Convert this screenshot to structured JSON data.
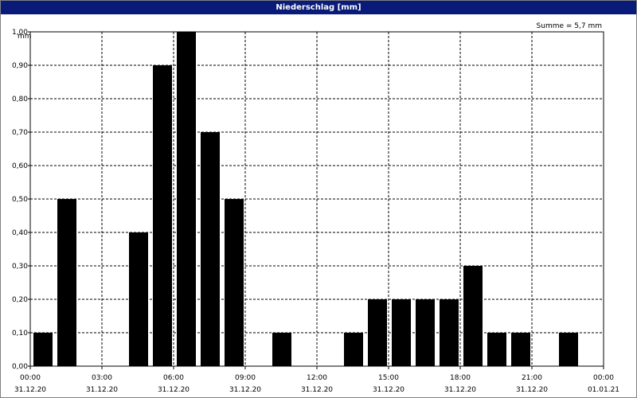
{
  "window_title": "Niederschlag [mm]",
  "summary": "Summe = 5,7 mm",
  "chart_data": {
    "type": "bar",
    "title": "Niederschlag [mm]",
    "ylabel": "mm",
    "ylim": [
      0,
      1.0
    ],
    "xlim": [
      "31.12.20 00:00",
      "01.01.21 00:00"
    ],
    "grid": true,
    "yticks": [
      "0,00",
      "0,10",
      "0,20",
      "0,30",
      "0,40",
      "0,50",
      "0,60",
      "0,70",
      "0,80",
      "0,90",
      "1,00"
    ],
    "xticks": [
      {
        "time": "00:00",
        "date": "31.12.20"
      },
      {
        "time": "03:00",
        "date": "31.12.20"
      },
      {
        "time": "06:00",
        "date": "31.12.20"
      },
      {
        "time": "09:00",
        "date": "31.12.20"
      },
      {
        "time": "12:00",
        "date": "31.12.20"
      },
      {
        "time": "15:00",
        "date": "31.12.20"
      },
      {
        "time": "18:00",
        "date": "31.12.20"
      },
      {
        "time": "21:00",
        "date": "31.12.20"
      },
      {
        "time": "00:00",
        "date": "01.01.21"
      }
    ],
    "categories": [
      "00:00",
      "01:00",
      "02:00",
      "03:00",
      "04:00",
      "05:00",
      "06:00",
      "07:00",
      "08:00",
      "09:00",
      "10:00",
      "11:00",
      "12:00",
      "13:00",
      "14:00",
      "15:00",
      "16:00",
      "17:00",
      "18:00",
      "19:00",
      "20:00",
      "21:00",
      "22:00",
      "23:00"
    ],
    "values": [
      0.1,
      0.5,
      0,
      0,
      0.4,
      0.9,
      1.0,
      0.7,
      0.5,
      0,
      0.1,
      0,
      0,
      0.1,
      0.2,
      0.2,
      0.2,
      0.2,
      0.3,
      0.1,
      0.1,
      0,
      0.1,
      0
    ],
    "bar_color": "#000000"
  }
}
